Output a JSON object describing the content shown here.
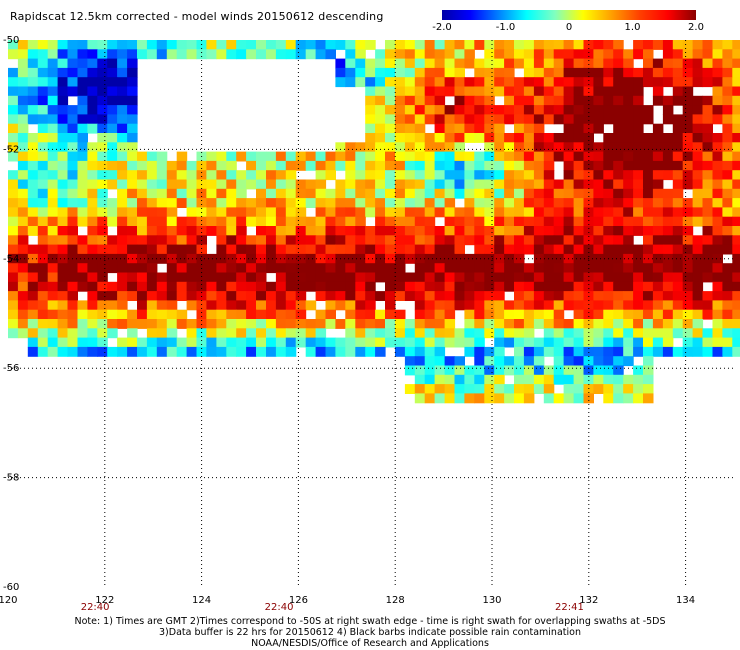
{
  "title": "Rapidscat 12.5km corrected - model winds 20150612 descending",
  "colorbar": {
    "stops": [
      "#0000a8",
      "#0000ff",
      "#0080ff",
      "#00ffff",
      "#80ffbf",
      "#ffff00",
      "#ffa000",
      "#ff4000",
      "#ff0000",
      "#8b0000"
    ],
    "ticks": [
      "-2.0",
      "-1.0",
      "0",
      "1.0",
      "2.0"
    ]
  },
  "chart_data": {
    "type": "heatmap",
    "xlim": [
      120,
      135
    ],
    "ylim": [
      -60,
      -50
    ],
    "x_ticks": [
      "120",
      "122",
      "124",
      "126",
      "128",
      "130",
      "132",
      "134"
    ],
    "y_ticks": [
      "-50",
      "-52",
      "-54",
      "-56",
      "-58",
      "-60"
    ],
    "time_labels": [
      {
        "lon": 121.8,
        "text": "22:40"
      },
      {
        "lon": 125.6,
        "text": "22:40"
      },
      {
        "lon": 131.6,
        "text": "22:41"
      }
    ],
    "value_range": [
      -2.0,
      2.0
    ],
    "grid": true,
    "summary_regions": [
      {
        "region": "north-west",
        "lon": [
          120,
          124
        ],
        "lat": [
          -52,
          -50
        ],
        "value": -2.0
      },
      {
        "region": "west-center",
        "lon": [
          120,
          124
        ],
        "lat": [
          -54,
          -52
        ],
        "value": 0.6
      },
      {
        "region": "center-band",
        "lon": [
          126,
          134
        ],
        "lat": [
          -55,
          -53.5
        ],
        "value": 2.0
      },
      {
        "region": "north-east",
        "lon": [
          129,
          135
        ],
        "lat": [
          -53,
          -50
        ],
        "value": 2.0
      },
      {
        "region": "south-edge",
        "lon": [
          122,
          134
        ],
        "lat": [
          -56.5,
          -55.5
        ],
        "value": -0.3
      }
    ]
  },
  "notes": [
    "Note: 1) Times are GMT 2)Times correspond to -50S at right swath edge - time is right swath for overlapping swaths at -5DS",
    "3)Data buffer is 22 hrs for 20150612 4) Black barbs indicate possible rain contamination",
    "NOAA/NESDIS/Office of Research and Applications"
  ]
}
